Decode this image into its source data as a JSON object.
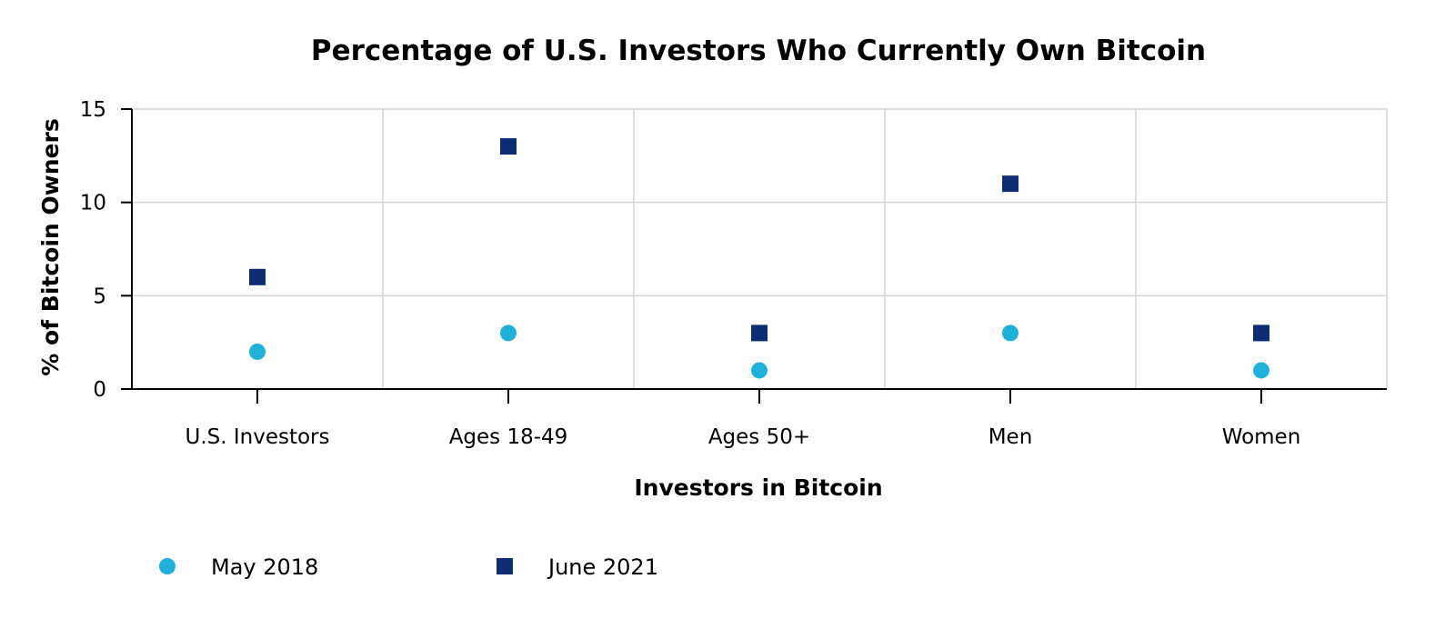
{
  "chart_data": {
    "type": "scatter",
    "title": "Percentage of U.S. Investors Who Currently Own Bitcoin",
    "xlabel": "Investors in Bitcoin",
    "ylabel": "% of Bitcoin Owners",
    "categories": [
      "U.S. Investors",
      "Ages 18-49",
      "Ages 50+",
      "Men",
      "Women"
    ],
    "ylim": [
      0,
      15
    ],
    "yticks": [
      0,
      5,
      10,
      15
    ],
    "grid": true,
    "legend_position": "bottom-left",
    "series": [
      {
        "name": "May 2018",
        "marker": "circle",
        "color": "#1fb1d9",
        "values": [
          2,
          3,
          1,
          3,
          1
        ]
      },
      {
        "name": "June 2021",
        "marker": "square",
        "color": "#0c2d74",
        "values": [
          6,
          13,
          3,
          11,
          3
        ]
      }
    ]
  }
}
